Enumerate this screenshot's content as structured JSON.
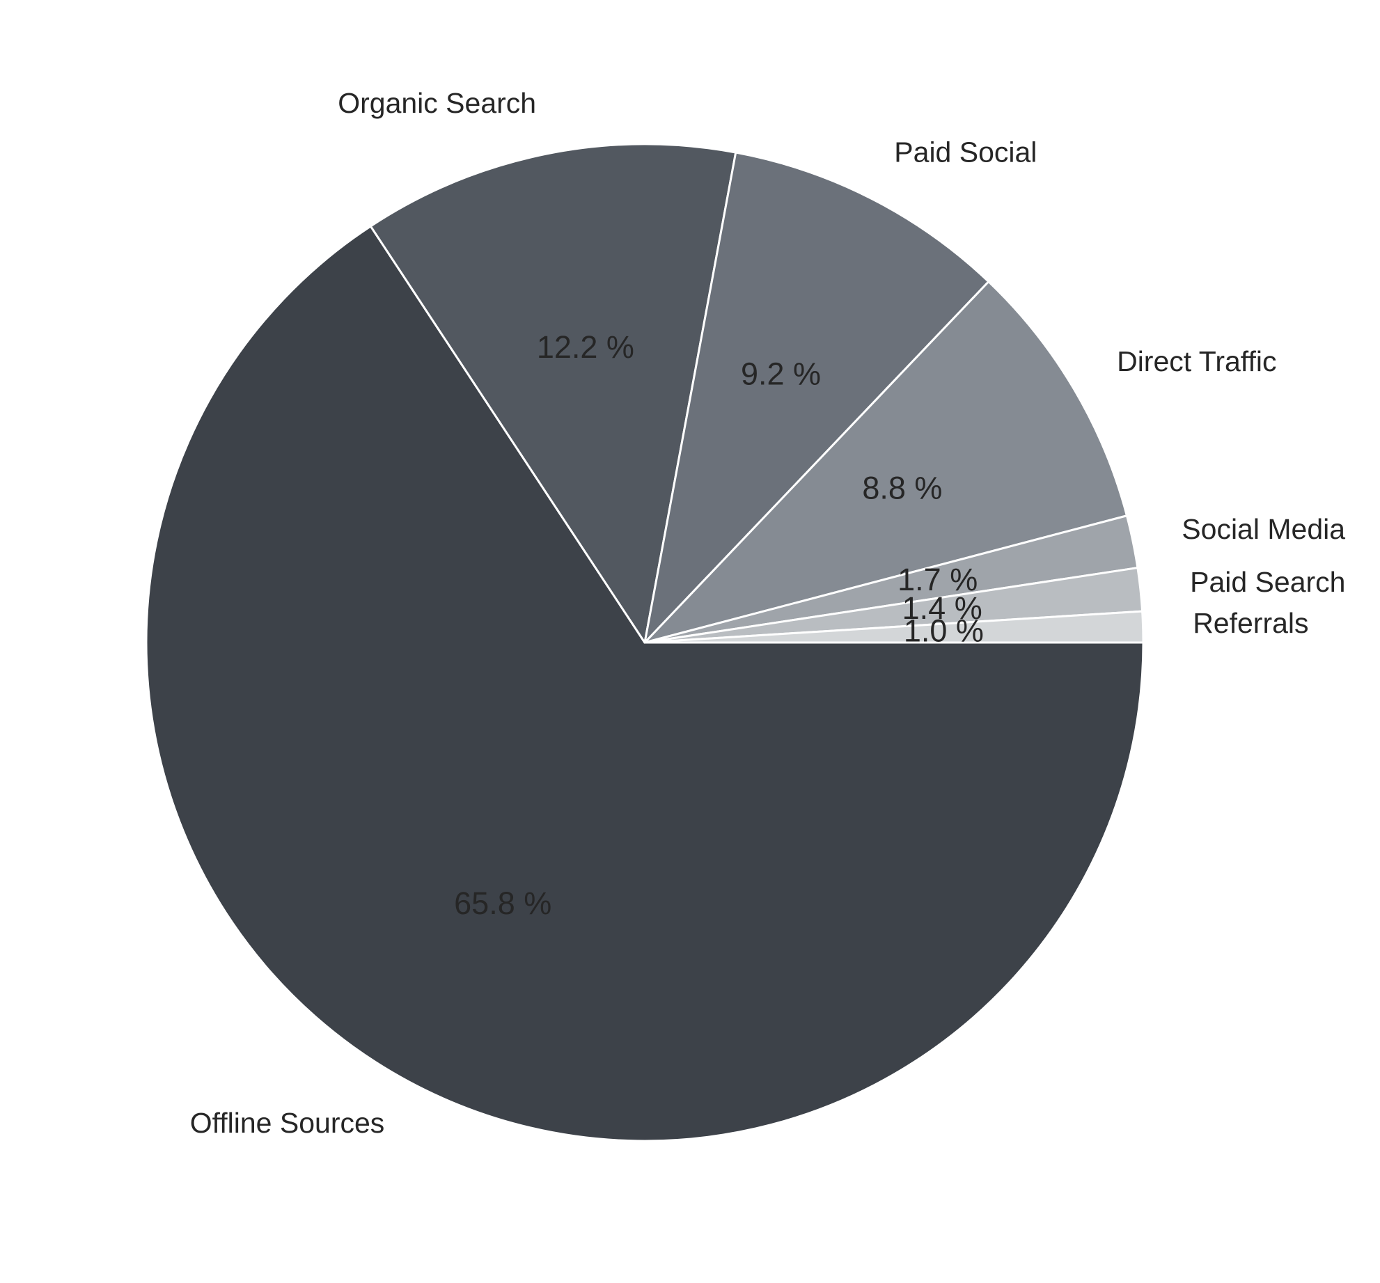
{
  "chart_data": {
    "type": "pie",
    "start_angle_deg": 0,
    "direction": "clockwise",
    "slices": [
      {
        "label": "Offline Sources",
        "value": 65.8,
        "value_label": "65.8 %",
        "color": "#3d4249"
      },
      {
        "label": "Organic Search",
        "value": 12.2,
        "value_label": "12.2 %",
        "color": "#525860"
      },
      {
        "label": "Paid Social",
        "value": 9.2,
        "value_label": "9.2 %",
        "color": "#6b717a"
      },
      {
        "label": "Direct Traffic",
        "value": 8.8,
        "value_label": "8.8 %",
        "color": "#858b93"
      },
      {
        "label": "Social Media",
        "value": 1.7,
        "value_label": "1.7 %",
        "color": "#9fa4aa"
      },
      {
        "label": "Paid Search",
        "value": 1.4,
        "value_label": "1.4 %",
        "color": "#b9bdc1"
      },
      {
        "label": "Referrals",
        "value": 1.0,
        "value_label": "1.0 %",
        "color": "#d3d6d8"
      }
    ]
  }
}
